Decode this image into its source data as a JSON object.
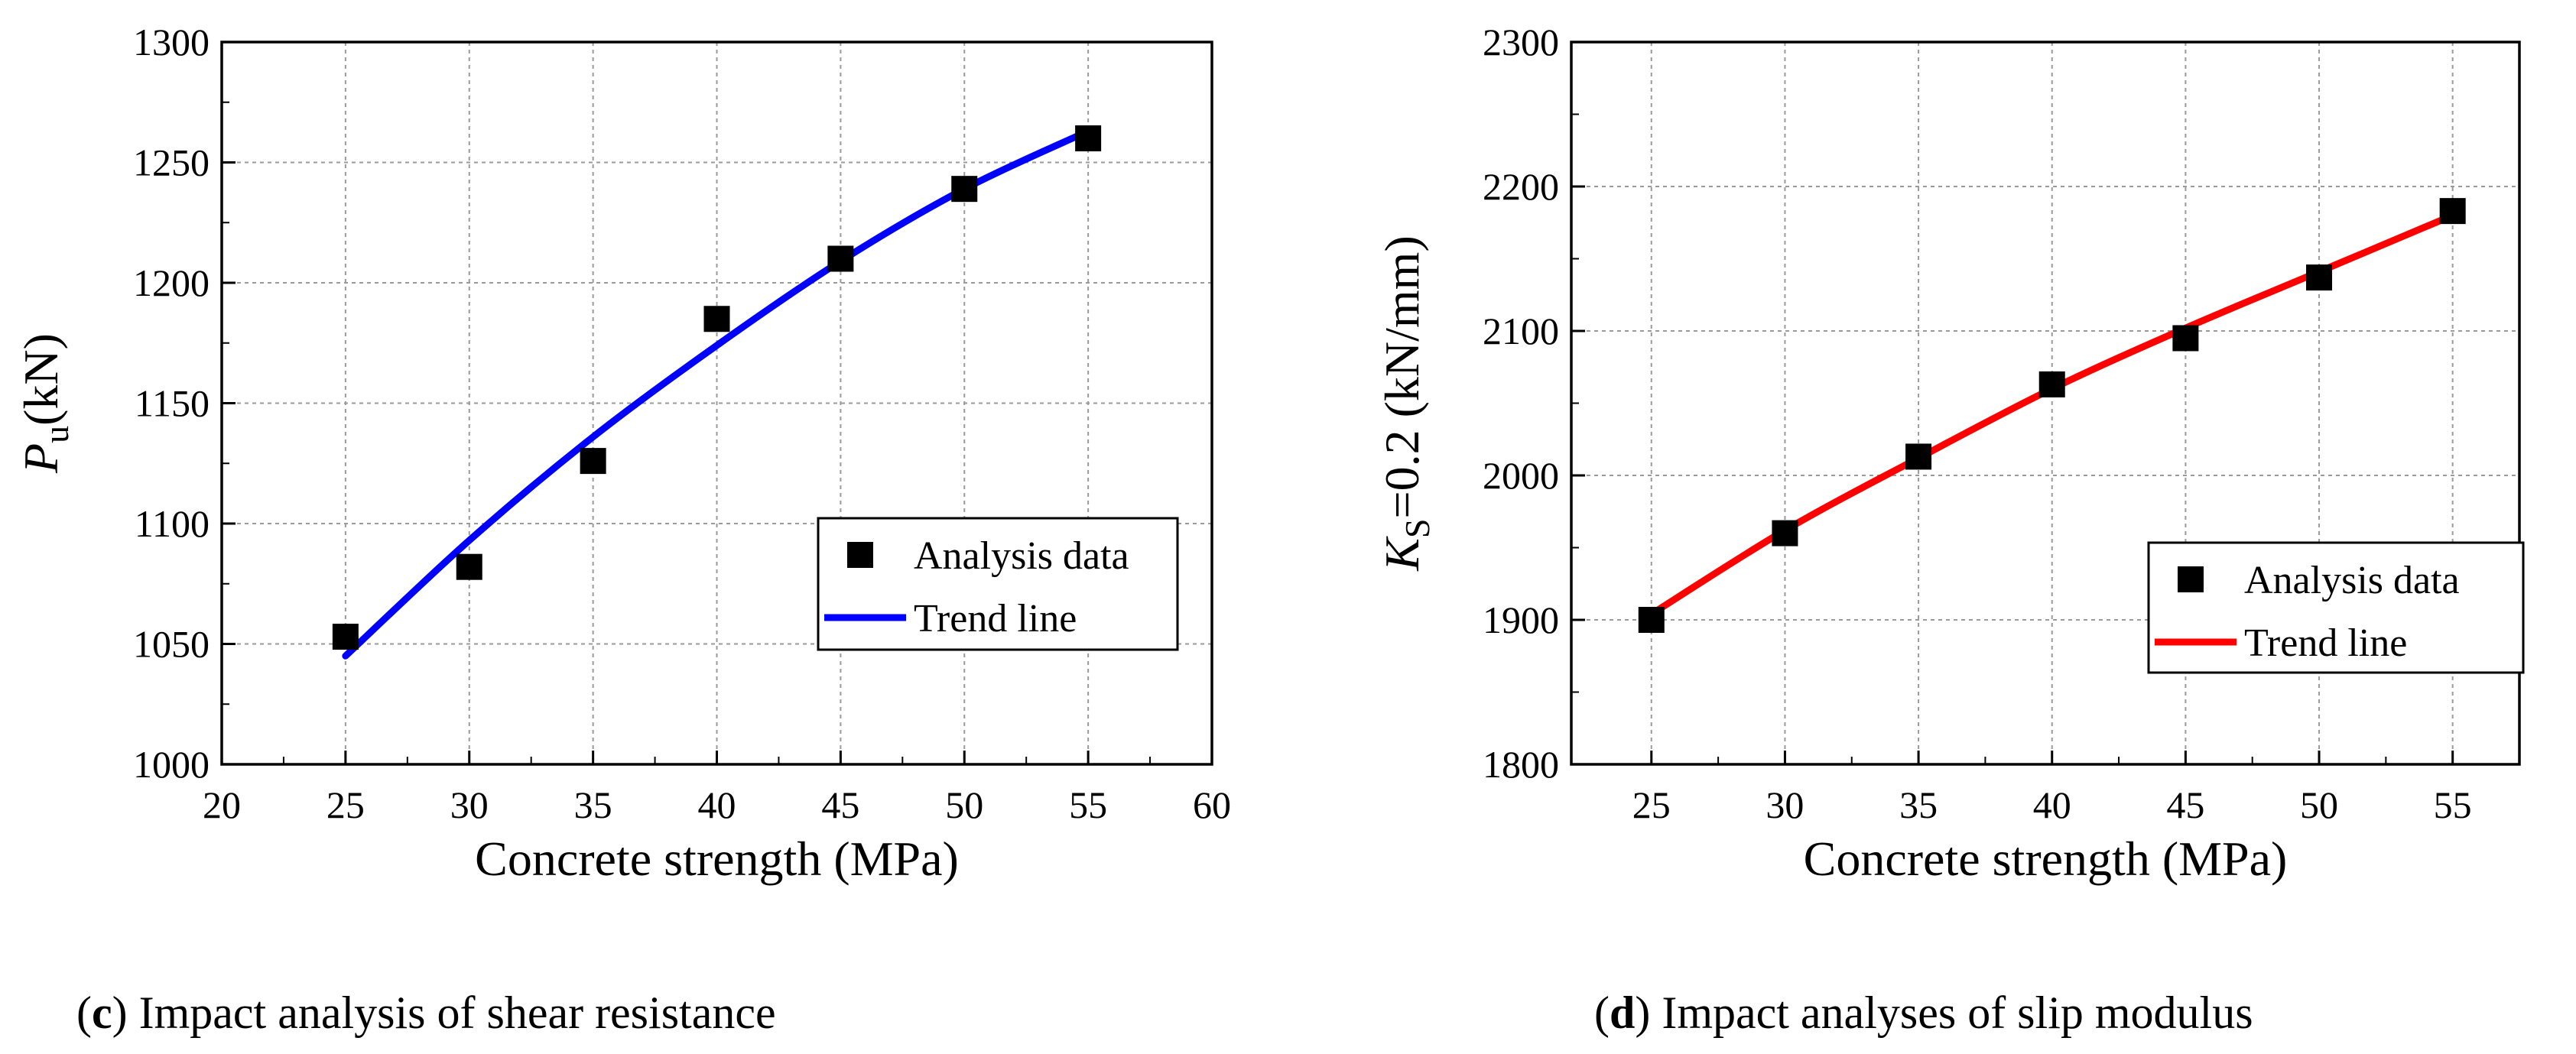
{
  "chart_data": [
    {
      "panel_id": "c",
      "type": "scatter",
      "xlabel": "Concrete strength (MPa)",
      "ylabel_main": "P",
      "ylabel_sub": "u",
      "ylabel_unit": "(kN)",
      "xlim": [
        20,
        60
      ],
      "ylim": [
        1000,
        1300
      ],
      "xticks": [
        20,
        25,
        30,
        35,
        40,
        45,
        50,
        55,
        60
      ],
      "yticks": [
        1000,
        1050,
        1100,
        1150,
        1200,
        1250,
        1300
      ],
      "grid": true,
      "legend_position": "right",
      "series": [
        {
          "name": "Analysis data",
          "kind": "scatter",
          "color": "#000000",
          "x": [
            25,
            30,
            35,
            40,
            45,
            50,
            55
          ],
          "y": [
            1053,
            1082,
            1126,
            1185,
            1210,
            1239,
            1260
          ]
        },
        {
          "name": "Trend line",
          "kind": "line",
          "color": "#0000ff",
          "x": [
            25,
            30,
            35,
            40,
            45,
            50,
            55
          ],
          "y": [
            1045,
            1093,
            1136,
            1174,
            1209,
            1239,
            1263
          ]
        }
      ],
      "caption_letter": "c",
      "caption_text": " Impact analysis of shear resistance"
    },
    {
      "panel_id": "d",
      "type": "scatter",
      "xlabel": "Concrete strength (MPa)",
      "ylabel_main": "K",
      "ylabel_sub": "S",
      "ylabel_unit": "=0.2 (kN/mm)",
      "xlim": [
        22,
        57.5
      ],
      "ylim": [
        1800,
        2300
      ],
      "xticks": [
        25,
        30,
        35,
        40,
        45,
        50,
        55
      ],
      "yticks": [
        1800,
        1900,
        2000,
        2100,
        2200,
        2300
      ],
      "grid": true,
      "legend_position": "right",
      "series": [
        {
          "name": "Analysis data",
          "kind": "scatter",
          "color": "#000000",
          "x": [
            25,
            30,
            35,
            40,
            45,
            50,
            55
          ],
          "y": [
            1900,
            1960,
            2013,
            2063,
            2095,
            2137,
            2183
          ]
        },
        {
          "name": "Trend line",
          "kind": "line",
          "color": "#ff0000",
          "x": [
            25,
            30,
            35,
            40,
            45,
            50,
            55
          ],
          "y": [
            1904,
            1962,
            2012,
            2060,
            2102,
            2141,
            2180
          ]
        }
      ],
      "caption_letter": "d",
      "caption_text": " Impact analyses of slip modulus"
    }
  ]
}
